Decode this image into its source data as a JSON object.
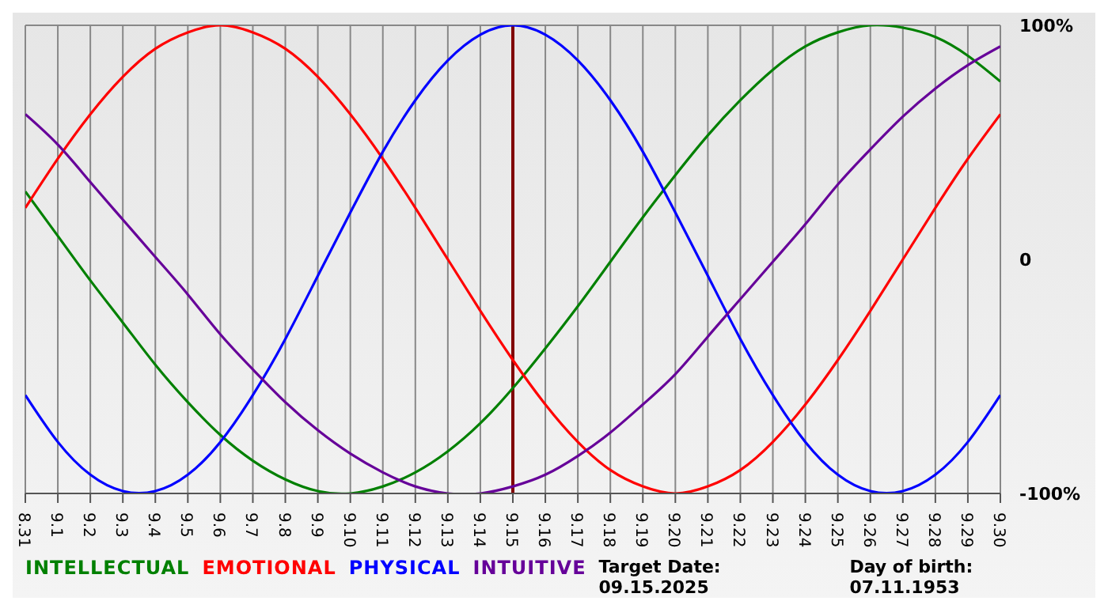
{
  "chart_data": {
    "type": "line",
    "categories": [
      "8.31",
      "9.1",
      "9.2",
      "9.3",
      "9.4",
      "9.5",
      "9.6",
      "9.7",
      "9.8",
      "9.9",
      "9.10",
      "9.11",
      "9.12",
      "9.13",
      "9.14",
      "9.15",
      "9.16",
      "9.17",
      "9.18",
      "9.19",
      "9.20",
      "9.21",
      "9.22",
      "9.23",
      "9.24",
      "9.25",
      "9.26",
      "9.27",
      "9.28",
      "9.29",
      "9.30"
    ],
    "series": [
      {
        "name": "INTELLECTUAL",
        "color": "#008000",
        "values": [
          29,
          10,
          -9,
          -27,
          -45,
          -61,
          -75,
          -86,
          -94,
          -99,
          -100,
          -97,
          -91,
          -82,
          -70,
          -55,
          -38,
          -20,
          -1,
          18,
          36,
          53,
          68,
          81,
          91,
          97,
          100,
          99,
          95,
          87,
          76
        ]
      },
      {
        "name": "EMOTIONAL",
        "color": "#ff0000",
        "values": [
          22,
          43,
          62,
          78,
          90,
          97,
          100,
          97,
          90,
          78,
          62,
          43,
          22,
          0,
          -22,
          -43,
          -62,
          -78,
          -90,
          -97,
          -100,
          -97,
          -90,
          -78,
          -62,
          -43,
          -22,
          0,
          22,
          43,
          62
        ]
      },
      {
        "name": "PHYSICAL",
        "color": "#0000ff",
        "values": [
          -58,
          -78,
          -92,
          -99,
          -99,
          -92,
          -78,
          -58,
          -34,
          -7,
          20,
          46,
          68,
          85,
          96,
          100,
          96,
          85,
          68,
          46,
          20,
          -7,
          -34,
          -58,
          -78,
          -92,
          -99,
          -99,
          -92,
          -78,
          -58
        ]
      },
      {
        "name": "INTUITIVE",
        "color": "#660099",
        "values": [
          62,
          49,
          33,
          17,
          1,
          -15,
          -32,
          -47,
          -61,
          -73,
          -83,
          -91,
          -97,
          -100,
          -100,
          -97,
          -92,
          -84,
          -74,
          -62,
          -49,
          -33,
          -17,
          -1,
          15,
          32,
          47,
          61,
          73,
          83,
          91
        ]
      }
    ],
    "ylim": [
      -100,
      100
    ],
    "yticks": [
      {
        "value": 100,
        "label": "100%"
      },
      0,
      {
        "value": -100,
        "label": "-100%"
      }
    ],
    "grid": true,
    "legend": "bottom left",
    "ref_lines": [
      {
        "axis": "x",
        "value": "9.15",
        "color": "#800000"
      }
    ],
    "annotations": [
      "Target Date: 09.15.2025",
      "Day of birth: 07.11.1953"
    ]
  }
}
